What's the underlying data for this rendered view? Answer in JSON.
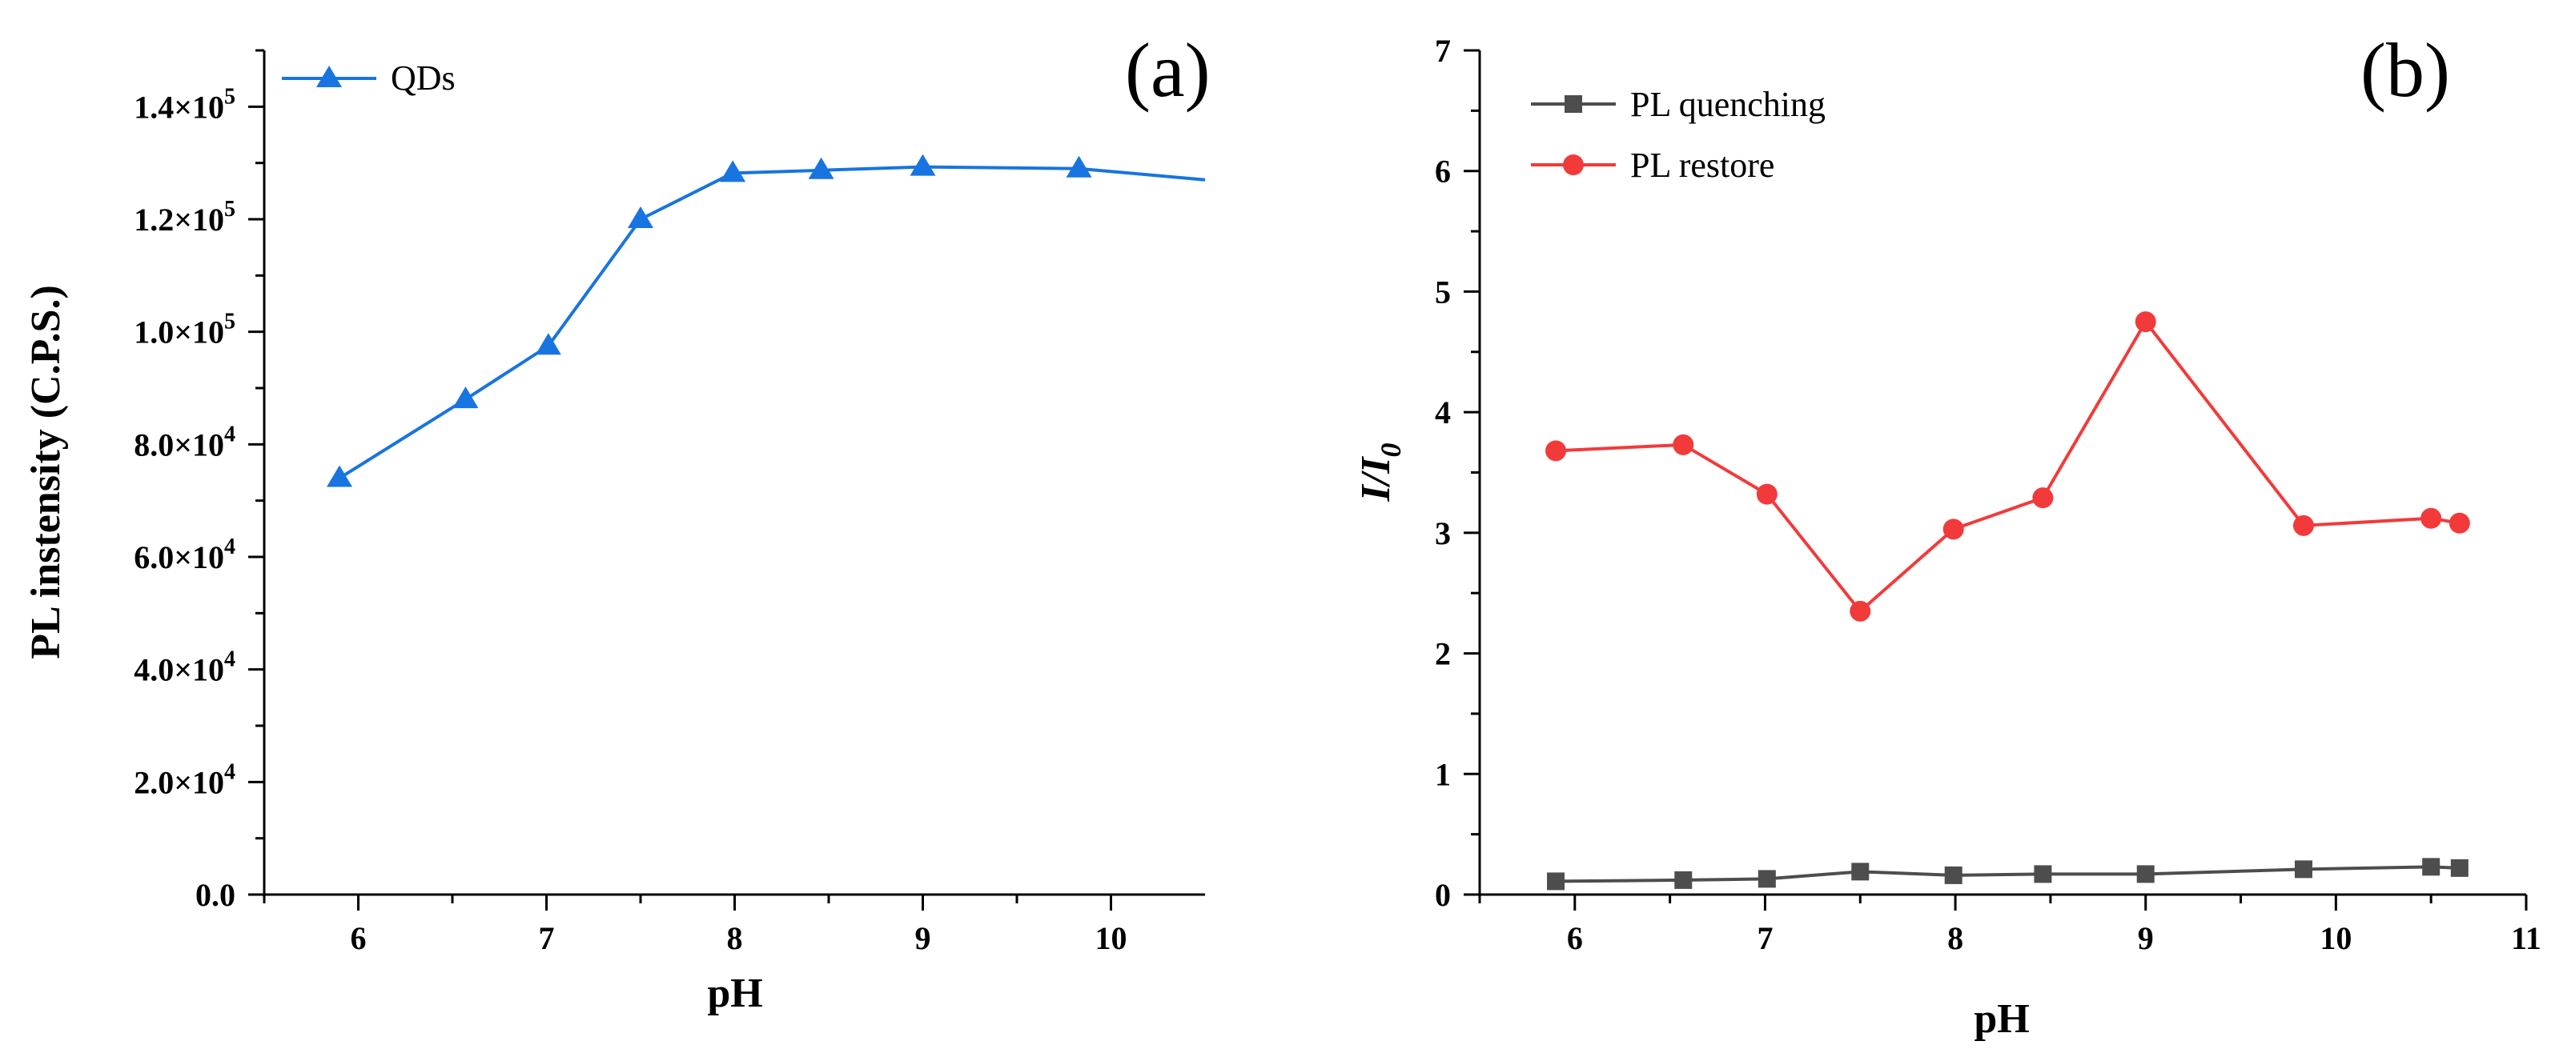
{
  "chart_data": [
    {
      "panel_label": "(a)",
      "type": "line",
      "xlabel": "pH",
      "ylabel": "PL instensity (C.P.S.)",
      "xlim": [
        5.5,
        10.5
      ],
      "ylim": [
        0,
        150000
      ],
      "x_ticks": [
        6,
        7,
        8,
        9,
        10
      ],
      "y_tick_labels": [
        {
          "mantissa": "0.0",
          "exp": ""
        },
        {
          "mantissa": "2.0×10",
          "exp": "4"
        },
        {
          "mantissa": "4.0×10",
          "exp": "4"
        },
        {
          "mantissa": "6.0×10",
          "exp": "4"
        },
        {
          "mantissa": "8.0×10",
          "exp": "4"
        },
        {
          "mantissa": "1.0×10",
          "exp": "5"
        },
        {
          "mantissa": "1.2×10",
          "exp": "5"
        },
        {
          "mantissa": "1.4×10",
          "exp": "5"
        }
      ],
      "y_tick_values": [
        0,
        20000,
        40000,
        60000,
        80000,
        100000,
        120000,
        140000
      ],
      "legend_position": "top-left",
      "series": [
        {
          "name": "QDs",
          "color": "#1874e0",
          "marker": "triangle",
          "x": [
            5.9,
            6.57,
            7.01,
            7.5,
            7.99,
            8.46,
            9.0,
            9.83,
            10.5
          ],
          "y": [
            74000,
            88000,
            97500,
            120000,
            128200,
            128700,
            129300,
            129000,
            127000
          ],
          "marker_points": 8
        }
      ]
    },
    {
      "panel_label": "(b)",
      "type": "line",
      "xlabel": "pH",
      "ylabel_main": "I/I",
      "ylabel_sub": "0",
      "xlim": [
        5.5,
        11
      ],
      "ylim": [
        0,
        7
      ],
      "x_ticks": [
        6,
        7,
        8,
        9,
        10,
        11
      ],
      "y_ticks": [
        0,
        1,
        2,
        3,
        4,
        5,
        6,
        7
      ],
      "legend_position": "top-left",
      "series": [
        {
          "name": "PL quenching",
          "color": "#4d4d4d",
          "marker": "square",
          "x": [
            5.9,
            6.57,
            7.01,
            7.5,
            7.99,
            8.46,
            9.0,
            9.83,
            10.5,
            10.65
          ],
          "y": [
            0.11,
            0.12,
            0.13,
            0.19,
            0.16,
            0.17,
            0.17,
            0.21,
            0.23,
            0.22
          ]
        },
        {
          "name": "PL restore",
          "color": "#f23a3a",
          "marker": "circle",
          "x": [
            5.9,
            6.57,
            7.01,
            7.5,
            7.99,
            8.46,
            9.0,
            9.83,
            10.5,
            10.65
          ],
          "y": [
            3.68,
            3.73,
            3.32,
            2.35,
            3.03,
            3.29,
            4.75,
            3.06,
            3.12,
            3.08
          ]
        }
      ]
    }
  ]
}
